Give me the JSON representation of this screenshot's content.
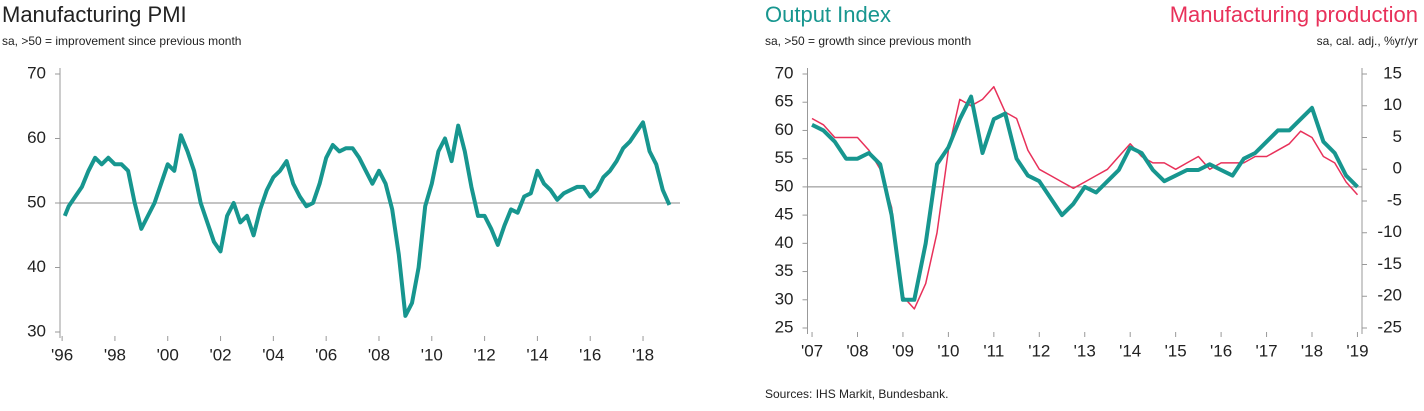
{
  "chart_data": [
    {
      "type": "line",
      "title": "Manufacturing PMI",
      "subtitle": "sa, >50 = improvement since previous month",
      "xlim": [
        1995.92,
        2019.4
      ],
      "ylim": [
        30,
        70
      ],
      "yticks": [
        30,
        40,
        50,
        60,
        70
      ],
      "hline": 50,
      "xticks": [
        {
          "value": 1996,
          "label": "'96"
        },
        {
          "value": 1998,
          "label": "'98"
        },
        {
          "value": 2000,
          "label": "'00"
        },
        {
          "value": 2002,
          "label": "'02"
        },
        {
          "value": 2004,
          "label": "'04"
        },
        {
          "value": 2006,
          "label": "'06"
        },
        {
          "value": 2008,
          "label": "'08"
        },
        {
          "value": 2010,
          "label": "'10"
        },
        {
          "value": 2012,
          "label": "'12"
        },
        {
          "value": 2014,
          "label": "'14"
        },
        {
          "value": 2016,
          "label": "'16"
        },
        {
          "value": 2018,
          "label": "'18"
        }
      ],
      "x": [
        1996.1,
        1996.25,
        1996.5,
        1996.75,
        1997.0,
        1997.25,
        1997.5,
        1997.75,
        1998.0,
        1998.25,
        1998.5,
        1998.75,
        1999.0,
        1999.25,
        1999.5,
        1999.75,
        2000.0,
        2000.25,
        2000.5,
        2000.75,
        2001.0,
        2001.25,
        2001.5,
        2001.75,
        2002.0,
        2002.25,
        2002.5,
        2002.75,
        2003.0,
        2003.25,
        2003.5,
        2003.75,
        2004.0,
        2004.25,
        2004.5,
        2004.75,
        2005.0,
        2005.25,
        2005.5,
        2005.75,
        2006.0,
        2006.25,
        2006.5,
        2006.75,
        2007.0,
        2007.25,
        2007.5,
        2007.75,
        2008.0,
        2008.25,
        2008.5,
        2008.75,
        2009.0,
        2009.25,
        2009.5,
        2009.75,
        2010.0,
        2010.25,
        2010.5,
        2010.75,
        2011.0,
        2011.25,
        2011.5,
        2011.75,
        2012.0,
        2012.25,
        2012.5,
        2012.75,
        2013.0,
        2013.25,
        2013.5,
        2013.75,
        2014.0,
        2014.25,
        2014.5,
        2014.75,
        2015.0,
        2015.25,
        2015.5,
        2015.75,
        2016.0,
        2016.25,
        2016.5,
        2016.75,
        2017.0,
        2017.25,
        2017.5,
        2017.75,
        2018.0,
        2018.25,
        2018.5,
        2018.75,
        2019.0
      ],
      "series": [
        {
          "name": null,
          "color": "#17968f",
          "width": 4,
          "values": [
            48,
            49.5,
            51,
            52.5,
            55,
            57,
            56,
            57,
            56,
            56,
            55,
            50,
            46,
            48,
            50,
            53,
            56,
            55,
            60.5,
            58,
            55,
            50,
            47,
            44,
            42.5,
            48,
            50,
            47,
            48,
            45,
            49,
            52,
            54,
            55,
            56.5,
            53,
            51,
            49.5,
            50,
            53,
            57,
            59,
            58,
            58.5,
            58.5,
            57,
            55,
            53,
            55,
            53,
            49,
            42,
            32.5,
            34.5,
            40,
            49.5,
            53,
            58,
            60,
            56.5,
            62,
            58,
            52.5,
            48,
            48,
            46,
            43.5,
            46.5,
            49,
            48.5,
            51,
            51.5,
            55,
            53,
            52,
            50.5,
            51.5,
            52,
            52.5,
            52.5,
            51,
            52,
            54,
            55,
            56.5,
            58.5,
            59.5,
            61,
            62.5,
            58,
            56,
            52,
            49.7
          ]
        }
      ]
    },
    {
      "type": "line",
      "subtitle": "sa, >50 = growth since previous month",
      "y2_subtitle": "sa, cal. adj., %yr/yr",
      "source": "Sources: IHS Markit, Bundesbank.",
      "xlim": [
        2006.9,
        2019.1
      ],
      "ylim": [
        25,
        70
      ],
      "yticks": [
        25,
        30,
        35,
        40,
        45,
        50,
        55,
        60,
        65,
        70
      ],
      "y2lim": [
        -25,
        15
      ],
      "y2ticks": [
        -25,
        -20,
        -15,
        -10,
        -5,
        0,
        5,
        10,
        15
      ],
      "hline": 50,
      "xticks": [
        {
          "value": 2007,
          "label": "'07"
        },
        {
          "value": 2008,
          "label": "'08"
        },
        {
          "value": 2009,
          "label": "'09"
        },
        {
          "value": 2010,
          "label": "'10"
        },
        {
          "value": 2011,
          "label": "'11"
        },
        {
          "value": 2012,
          "label": "'12"
        },
        {
          "value": 2013,
          "label": "'13"
        },
        {
          "value": 2014,
          "label": "'14"
        },
        {
          "value": 2015,
          "label": "'15"
        },
        {
          "value": 2016,
          "label": "'16"
        },
        {
          "value": 2017,
          "label": "'17"
        },
        {
          "value": 2018,
          "label": "'18"
        },
        {
          "value": 2019,
          "label": "'19"
        }
      ],
      "x": [
        2007.0,
        2007.25,
        2007.5,
        2007.75,
        2008.0,
        2008.25,
        2008.5,
        2008.75,
        2009.0,
        2009.25,
        2009.5,
        2009.75,
        2010.0,
        2010.25,
        2010.5,
        2010.75,
        2011.0,
        2011.25,
        2011.5,
        2011.75,
        2012.0,
        2012.25,
        2012.5,
        2012.75,
        2013.0,
        2013.25,
        2013.5,
        2013.75,
        2014.0,
        2014.25,
        2014.5,
        2014.75,
        2015.0,
        2015.25,
        2015.5,
        2015.75,
        2016.0,
        2016.25,
        2016.5,
        2016.75,
        2017.0,
        2017.25,
        2017.5,
        2017.75,
        2018.0,
        2018.25,
        2018.5,
        2018.75,
        2019.0
      ],
      "series": [
        {
          "name": "Output Index",
          "color": "#17968f",
          "width": 4,
          "values": [
            61,
            60,
            58,
            55,
            55,
            56,
            54,
            45,
            30,
            30,
            40,
            54,
            57,
            62,
            66,
            56,
            62,
            63,
            55,
            52,
            51,
            48,
            45,
            47,
            50,
            49,
            51,
            53,
            57,
            56,
            53,
            51,
            52,
            53,
            53,
            54,
            53,
            52,
            55,
            56,
            58,
            60,
            60,
            62,
            64,
            58,
            56,
            52,
            50
          ]
        },
        {
          "name": "Manufacturing production",
          "color": "#e8315a",
          "width": 1.5,
          "axis": "y2",
          "values": [
            8,
            7,
            5,
            5,
            5,
            3,
            0,
            -6,
            -20,
            -22,
            -18,
            -10,
            3,
            11,
            10,
            11,
            13,
            9,
            8,
            3,
            0,
            -1,
            -2,
            -3,
            -2,
            -1,
            0,
            2,
            4,
            2,
            1,
            1,
            0,
            1,
            2,
            0,
            1,
            1,
            1,
            2,
            2,
            3,
            4,
            6,
            5,
            2,
            1,
            -2,
            -4
          ]
        }
      ]
    }
  ]
}
